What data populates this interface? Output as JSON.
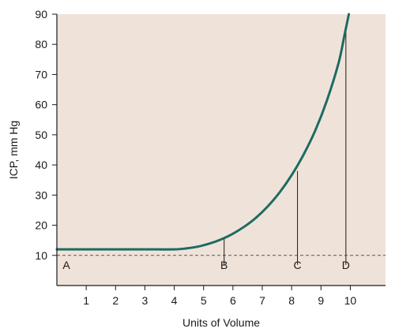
{
  "chart_data": {
    "type": "line",
    "xlabel": "Units of Volume",
    "ylabel": "ICP, mm Hg",
    "xlim": [
      0,
      11.2
    ],
    "ylim": [
      0,
      90
    ],
    "x_ticks": [
      1,
      2,
      3,
      4,
      5,
      6,
      7,
      8,
      9,
      10
    ],
    "y_ticks": [
      10,
      20,
      30,
      40,
      50,
      60,
      70,
      80,
      90
    ],
    "grid": false,
    "series": [
      {
        "x": [
          0,
          1,
          2,
          3,
          4,
          4.4,
          4.8,
          5.2,
          5.6,
          6.0,
          6.4,
          6.8,
          7.2,
          7.6,
          8.0,
          8.4,
          8.8,
          9.2,
          9.6,
          9.8,
          9.95
        ],
        "y": [
          12,
          12,
          12,
          12,
          12,
          12.3,
          12.9,
          13.9,
          15.3,
          17.2,
          19.6,
          22.6,
          26.4,
          31.0,
          36.6,
          43.3,
          51.3,
          61.3,
          73.8,
          83.0,
          90
        ]
      }
    ],
    "reference_line": {
      "y": 10,
      "style": "dashed"
    },
    "annotations": [
      {
        "label": "A",
        "x": 0.2,
        "y": 10
      },
      {
        "label": "B",
        "x": 5.7,
        "y": 15.5
      },
      {
        "label": "C",
        "x": 8.2,
        "y": 38
      },
      {
        "label": "D",
        "x": 9.85,
        "y": 86
      }
    ],
    "colors": {
      "plot_background": "#efe3d9",
      "curve": "#1d6b62",
      "axis": "#1a1a1a"
    }
  }
}
